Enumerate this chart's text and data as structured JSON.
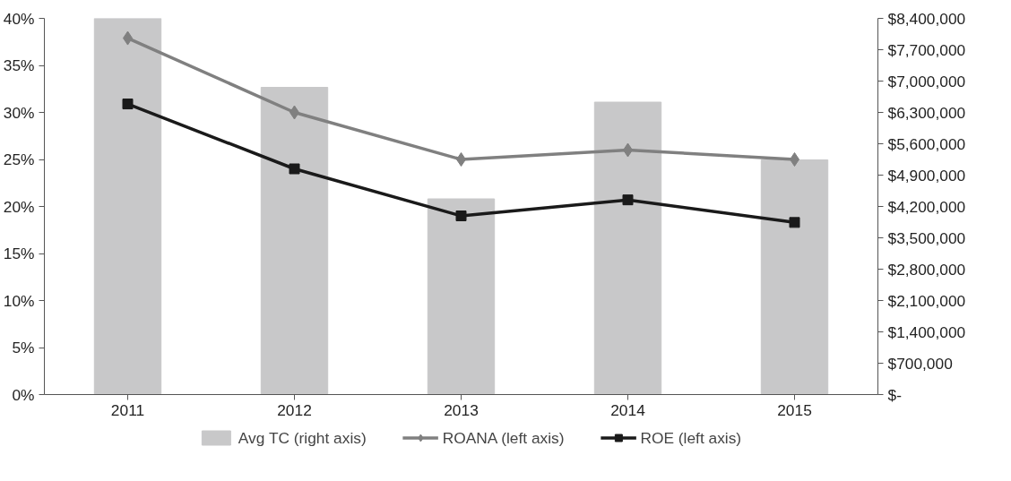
{
  "chart_data": {
    "type": "line",
    "categories": [
      "2011",
      "2012",
      "2013",
      "2014",
      "2015"
    ],
    "series": [
      {
        "name": "Avg TC (right axis)",
        "type": "bar",
        "axis": "y2",
        "color": "#c8c8c9",
        "values": [
          8400000,
          6860000,
          4370000,
          6530000,
          5240000
        ]
      },
      {
        "name": "ROANA (left axis)",
        "marker": "diamond",
        "color": "#808080",
        "values": [
          37.9,
          30.0,
          25.0,
          26.0,
          25.0
        ]
      },
      {
        "name": "ROE (left axis)",
        "marker": "square",
        "color": "#1a1a1a",
        "values": [
          30.9,
          24.0,
          19.0,
          20.7,
          18.3
        ]
      }
    ],
    "ylim": [
      0,
      40
    ],
    "yticks": [
      {
        "value": 0,
        "label": "0%"
      },
      {
        "value": 5,
        "label": "5%"
      },
      {
        "value": 10,
        "label": "10%"
      },
      {
        "value": 15,
        "label": "15%"
      },
      {
        "value": 20,
        "label": "20%"
      },
      {
        "value": 25,
        "label": "25%"
      },
      {
        "value": 30,
        "label": "30%"
      },
      {
        "value": 35,
        "label": "35%"
      },
      {
        "value": 40,
        "label": "40%"
      }
    ],
    "y2lim": [
      0,
      8400000
    ],
    "y2ticks": [
      {
        "value": 0,
        "label": "$-"
      },
      {
        "value": 700000,
        "label": "$700,000"
      },
      {
        "value": 1400000,
        "label": "$1,400,000"
      },
      {
        "value": 2100000,
        "label": "$2,100,000"
      },
      {
        "value": 2800000,
        "label": "$2,800,000"
      },
      {
        "value": 3500000,
        "label": "$3,500,000"
      },
      {
        "value": 4200000,
        "label": "$4,200,000"
      },
      {
        "value": 4900000,
        "label": "$4,900,000"
      },
      {
        "value": 5600000,
        "label": "$5,600,000"
      },
      {
        "value": 6300000,
        "label": "$6,300,000"
      },
      {
        "value": 7000000,
        "label": "$7,000,000"
      },
      {
        "value": 7700000,
        "label": "$7,700,000"
      },
      {
        "value": 8400000,
        "label": "$8,400,000"
      }
    ],
    "grid": false,
    "legend": "bottom",
    "line_style": "solid"
  }
}
